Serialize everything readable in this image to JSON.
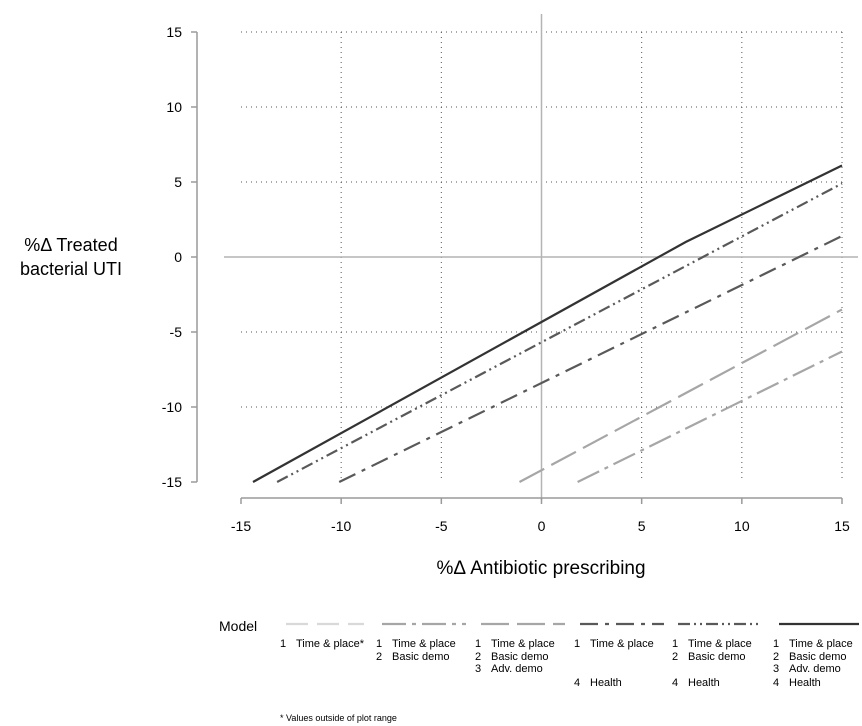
{
  "chart_data": {
    "type": "line",
    "title": "",
    "xlabel": "%Δ Antibiotic prescribing",
    "ylabel_lines": [
      "%Δ Treated",
      "bacterial UTI"
    ],
    "xlim": [
      -15,
      15
    ],
    "ylim": [
      -15,
      15
    ],
    "xticks": [
      -15,
      -10,
      -5,
      0,
      5,
      10,
      15
    ],
    "yticks": [
      -15,
      -10,
      -5,
      0,
      5,
      10,
      15
    ],
    "grid": true,
    "reference_lines": {
      "x": 0,
      "y": 0
    },
    "legend_title": "Model",
    "legend_position": "bottom",
    "footnote": "* Values outside of plot range",
    "series": [
      {
        "id": "m1",
        "color": "#d9d9d9",
        "dash": "22,9",
        "desc": [
          [
            "1",
            "Time & place*"
          ]
        ],
        "points": []
      },
      {
        "id": "m2",
        "color": "#a6a6a6",
        "dash": "24,6,4,6",
        "desc": [
          [
            "1",
            "Time & place"
          ],
          [
            "2",
            "Basic demo"
          ]
        ],
        "points": [
          [
            1.8,
            -15
          ],
          [
            15,
            -6.3
          ]
        ]
      },
      {
        "id": "m3",
        "color": "#a6a6a6",
        "dash": "28,8",
        "desc": [
          [
            "1",
            "Time & place"
          ],
          [
            "2",
            "Basic demo"
          ],
          [
            "3",
            "Adv. demo"
          ]
        ],
        "points": [
          [
            -1.1,
            -15
          ],
          [
            15,
            -3.5
          ]
        ]
      },
      {
        "id": "m4",
        "color": "#595959",
        "dash": "18,7,4,7",
        "desc": [
          [
            "1",
            "Time & place"
          ],
          [
            "",
            ""
          ],
          [
            "",
            ""
          ],
          [
            "4",
            "Health"
          ]
        ],
        "points": [
          [
            -10.1,
            -15
          ],
          [
            15,
            1.4
          ]
        ]
      },
      {
        "id": "m5",
        "color": "#595959",
        "dash": "12,4,2,4,2,4",
        "desc": [
          [
            "1",
            "Time & place"
          ],
          [
            "2",
            "Basic demo"
          ],
          [
            "",
            ""
          ],
          [
            "4",
            "Health"
          ]
        ],
        "points": [
          [
            -13.2,
            -15
          ],
          [
            15,
            4.9
          ]
        ]
      },
      {
        "id": "m6",
        "color": "#333333",
        "dash": "",
        "desc": [
          [
            "1",
            "Time & place"
          ],
          [
            "2",
            "Basic demo"
          ],
          [
            "3",
            "Adv. demo"
          ],
          [
            "4",
            "Health"
          ]
        ],
        "points": [
          [
            -14.4,
            -15
          ],
          [
            7.2,
            1.0
          ],
          [
            15,
            6.1
          ]
        ]
      }
    ]
  }
}
